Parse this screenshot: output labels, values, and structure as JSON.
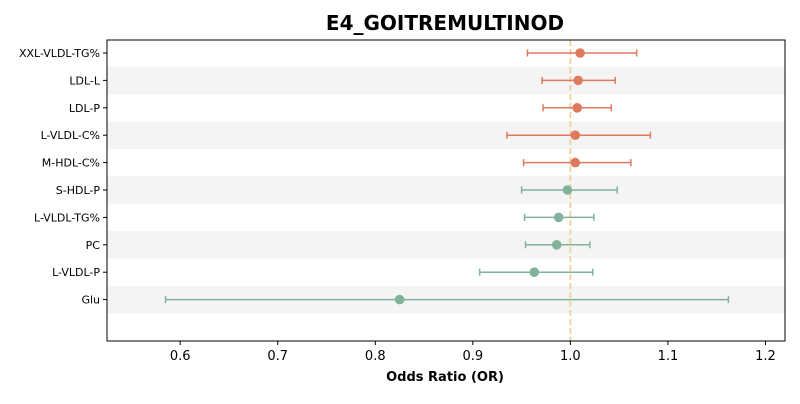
{
  "chart_data": {
    "type": "forest",
    "title": "E4_GOITREMULTINOD",
    "xlabel": "Odds Ratio (OR)",
    "ylabel": "",
    "xlim": [
      0.525,
      1.22
    ],
    "xticks": [
      0.6,
      0.7,
      0.8,
      0.9,
      1.0,
      1.1,
      1.2
    ],
    "xtick_labels": [
      "0.6",
      "0.7",
      "0.8",
      "0.9",
      "1.0",
      "1.1",
      "1.2"
    ],
    "reference_line": 1.0,
    "grid": false,
    "colors": {
      "positive": "#df7a5e",
      "negative": "#82b29a",
      "reference": "#f2cc8f",
      "band": "#f4f4f4"
    },
    "rows": [
      {
        "label": "XXL-VLDL-TG%",
        "or": 1.01,
        "lo": 0.956,
        "hi": 1.068,
        "group": "positive"
      },
      {
        "label": "LDL-L",
        "or": 1.008,
        "lo": 0.971,
        "hi": 1.046,
        "group": "positive"
      },
      {
        "label": "LDL-P",
        "or": 1.007,
        "lo": 0.972,
        "hi": 1.042,
        "group": "positive"
      },
      {
        "label": "L-VLDL-C%",
        "or": 1.005,
        "lo": 0.935,
        "hi": 1.082,
        "group": "positive"
      },
      {
        "label": "M-HDL-C%",
        "or": 1.005,
        "lo": 0.952,
        "hi": 1.062,
        "group": "positive"
      },
      {
        "label": "S-HDL-P",
        "or": 0.997,
        "lo": 0.95,
        "hi": 1.048,
        "group": "negative"
      },
      {
        "label": "L-VLDL-TG%",
        "or": 0.988,
        "lo": 0.953,
        "hi": 1.024,
        "group": "negative"
      },
      {
        "label": "PC",
        "or": 0.986,
        "lo": 0.954,
        "hi": 1.02,
        "group": "negative"
      },
      {
        "label": "L-VLDL-P",
        "or": 0.963,
        "lo": 0.907,
        "hi": 1.023,
        "group": "negative"
      },
      {
        "label": "Glu",
        "or": 0.825,
        "lo": 0.585,
        "hi": 1.162,
        "group": "negative"
      }
    ]
  }
}
